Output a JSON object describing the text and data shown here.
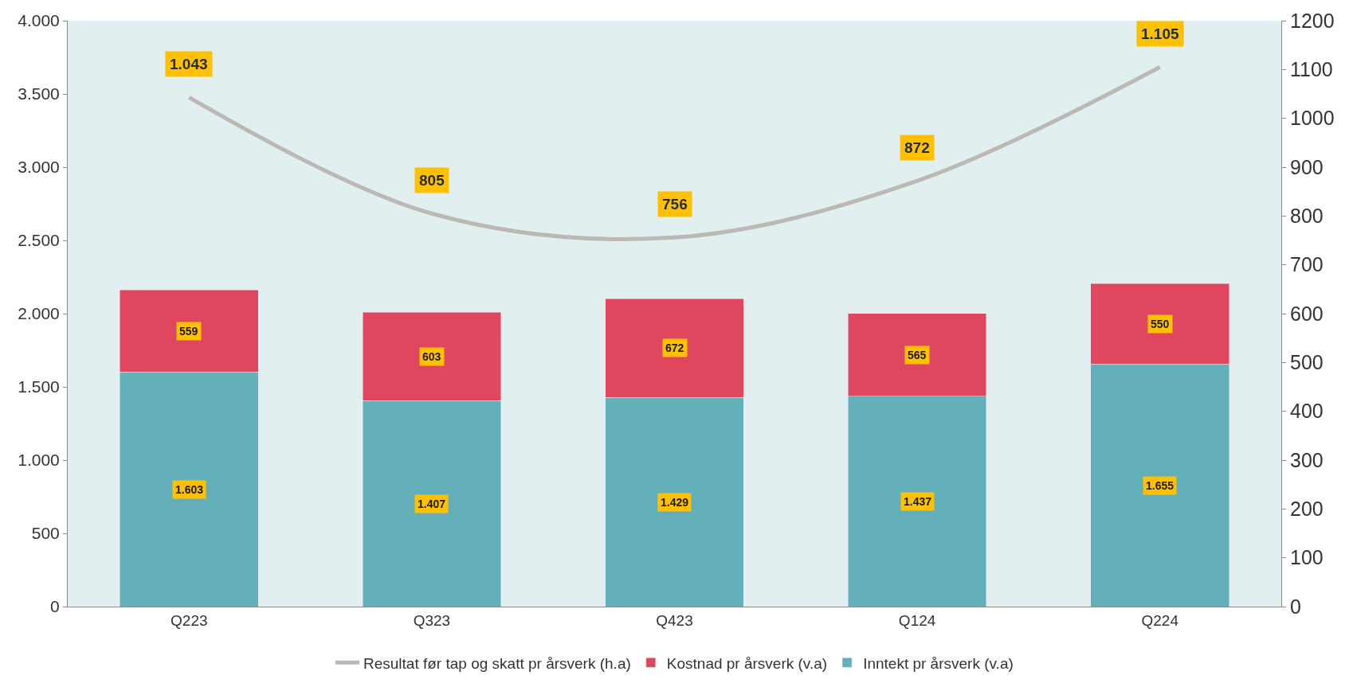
{
  "chart_data": {
    "type": "bar",
    "stacked": true,
    "categories": [
      "Q223",
      "Q323",
      "Q423",
      "Q124",
      "Q224"
    ],
    "series": [
      {
        "name": "Inntekt pr årsverk (v.a)",
        "color": "#63b0bb",
        "values": [
          1603,
          1407,
          1429,
          1437,
          1655
        ],
        "value_labels": [
          "1.603",
          "1.407",
          "1.429",
          "1.437",
          "1.655"
        ]
      },
      {
        "name": "Kostnad pr årsverk (v.a)",
        "color": "#e0475f",
        "values": [
          559,
          603,
          672,
          565,
          550
        ],
        "value_labels": [
          "559",
          "603",
          "672",
          "565",
          "550"
        ]
      },
      {
        "name": "Resultat før tap og skatt pr årsverk (h.a)",
        "type": "line",
        "axis": "y2",
        "color": "#bdb8b3",
        "marker": "none",
        "line_style": "solid",
        "values": [
          1043,
          805,
          756,
          872,
          1105
        ],
        "value_labels": [
          "1.043",
          "805",
          "756",
          "872",
          "1.105"
        ]
      }
    ],
    "ylim": [
      0,
      4000
    ],
    "yticks": [
      0,
      500,
      {
        "value": 1000,
        "label": "1.000"
      },
      {
        "value": 1500,
        "label": "1.500"
      },
      {
        "value": 2000,
        "label": "2.000"
      },
      {
        "value": 2500,
        "label": "2.500"
      },
      {
        "value": 3000,
        "label": "3.000"
      },
      {
        "value": 3500,
        "label": "3.500"
      },
      {
        "value": 4000,
        "label": "4.000"
      }
    ],
    "y2lim": [
      0,
      1200
    ],
    "y2ticks": [
      0,
      100,
      200,
      300,
      400,
      500,
      600,
      700,
      800,
      900,
      1000,
      1100,
      1200
    ],
    "grid": false,
    "legend": "bottom"
  }
}
